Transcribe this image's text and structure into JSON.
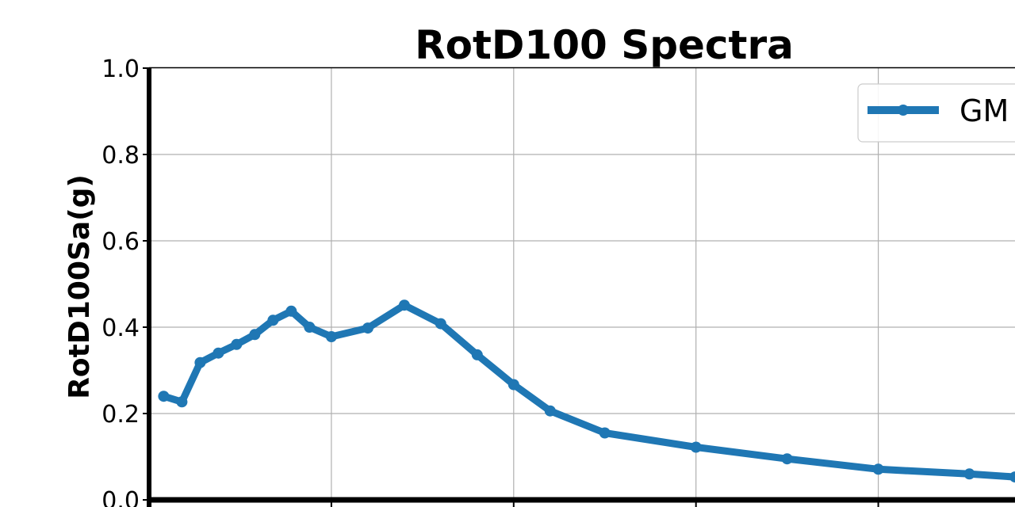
{
  "chart_data": {
    "type": "line",
    "title": "RotD100 Spectra",
    "xlabel": "",
    "ylabel": "RotD100Sa(g)",
    "ylim": [
      0,
      1.0
    ],
    "xlim": [
      0,
      4.75
    ],
    "yticks": [
      "0.0",
      "0.2",
      "0.4",
      "0.6",
      "0.8",
      "1.0"
    ],
    "xgrid": [
      1.0,
      2.0,
      3.0,
      4.0
    ],
    "grid": true,
    "legend_position": "top-right",
    "colors": {
      "series": "#1f77b4"
    },
    "series": [
      {
        "name": "GM",
        "x": [
          0.08,
          0.18,
          0.28,
          0.38,
          0.48,
          0.58,
          0.68,
          0.78,
          0.88,
          1.0,
          1.2,
          1.4,
          1.6,
          1.8,
          2.0,
          2.2,
          2.5,
          3.0,
          3.5,
          4.0,
          4.5,
          4.75
        ],
        "y": [
          0.24,
          0.227,
          0.318,
          0.34,
          0.36,
          0.383,
          0.416,
          0.437,
          0.4,
          0.378,
          0.398,
          0.451,
          0.408,
          0.336,
          0.267,
          0.206,
          0.155,
          0.122,
          0.095,
          0.071,
          0.06,
          0.053
        ]
      }
    ]
  }
}
